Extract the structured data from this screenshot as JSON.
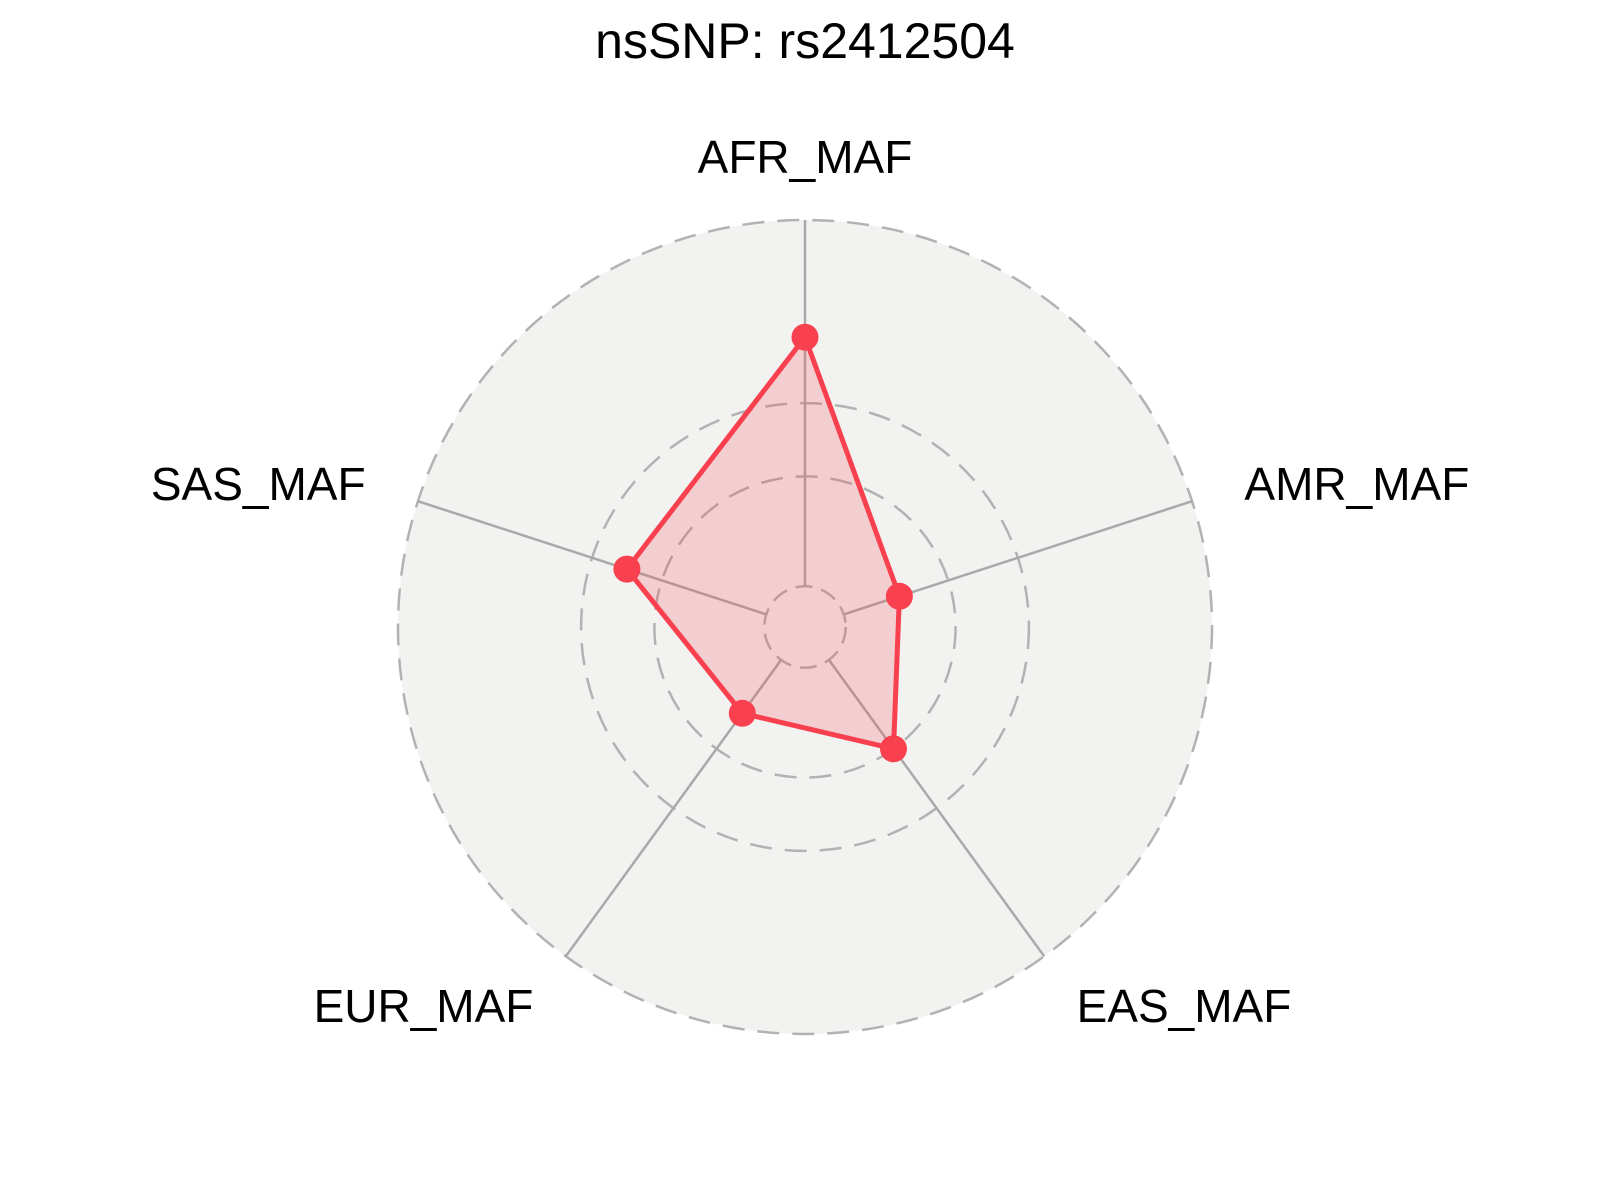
{
  "header": {
    "title": "nsSNP: rs2412504"
  },
  "chart_data": {
    "type": "radar",
    "title": "nsSNP: rs2412504",
    "categories": [
      "AFR_MAF",
      "AMR_MAF",
      "EAS_MAF",
      "EUR_MAF",
      "SAS_MAF"
    ],
    "values": [
      0.34,
      0.08,
      0.15,
      0.09,
      0.2
    ],
    "rmin": 0,
    "rmax": 0.5,
    "grid_circle_values": [
      0.15,
      0.25
    ],
    "center_hole_fraction": 0.1,
    "grid_style": "dashed",
    "legend": "none",
    "colors": {
      "series_line": "#f8404e",
      "series_fill_opacity": 0.2,
      "grid_line": "#b2b2b2",
      "axis_spoke": "#a9a9a9",
      "plot_disc": "#f2f2f1",
      "page_background": "#ffffff",
      "label_text": "#000000"
    }
  }
}
